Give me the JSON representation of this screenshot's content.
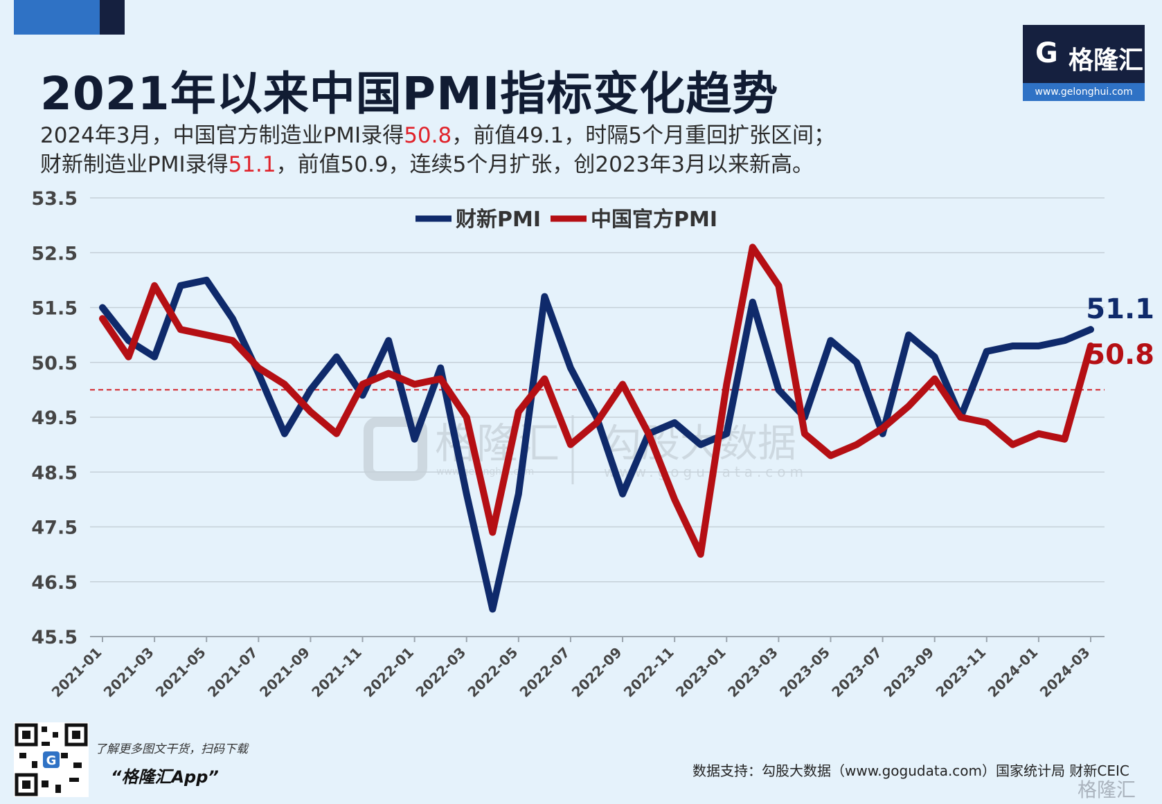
{
  "header": {
    "title": "2021年以来中国PMI指标变化趋势",
    "sub1_pre": "2024年3月，中国官方制造业PMI录得",
    "sub1_hl": "50.8",
    "sub1_post": "，前值49.1，时隔5个月重回扩张区间；",
    "sub2_pre": "财新制造业PMI录得",
    "sub2_hl": "51.1",
    "sub2_post": "，前值50.9，连续5个月扩张，创2023年3月以来新高。"
  },
  "logo": {
    "mark": "G",
    "name": "格隆汇",
    "url": "www.gelonghui.com"
  },
  "watermark": {
    "brand": "格隆汇",
    "brand_url": "www.gelonghui.com",
    "data": "勾股大数据",
    "data_url": "www.gogudata.com"
  },
  "footer": {
    "qr_text1": "了解更多图文干货，扫码下载",
    "qr_text2": "“格隆汇App”",
    "source": "数据支持：勾股大数据（www.gogudata.com）国家统计局 财新CEIC",
    "brand": "格隆汇"
  },
  "colors": {
    "caixin": "#0f2a6b",
    "official": "#b50f14",
    "threshold": "#d4242a",
    "highlight": "#e0222a",
    "background": "#e5f2fb"
  },
  "chart_data": {
    "type": "line",
    "ylim": [
      45.5,
      53.5
    ],
    "yticks": [
      53.5,
      52.5,
      51.5,
      50.5,
      49.5,
      48.5,
      47.5,
      46.5,
      45.5
    ],
    "reference_line": 50,
    "legend_position": "top-center",
    "x": [
      "2021-01",
      "2021-02",
      "2021-03",
      "2021-04",
      "2021-05",
      "2021-06",
      "2021-07",
      "2021-08",
      "2021-09",
      "2021-10",
      "2021-11",
      "2021-12",
      "2022-01",
      "2022-02",
      "2022-03",
      "2022-04",
      "2022-05",
      "2022-06",
      "2022-07",
      "2022-08",
      "2022-09",
      "2022-10",
      "2022-11",
      "2022-12",
      "2023-01",
      "2023-02",
      "2023-03",
      "2023-04",
      "2023-05",
      "2023-06",
      "2023-07",
      "2023-08",
      "2023-09",
      "2023-10",
      "2023-11",
      "2023-12",
      "2024-01",
      "2024-02",
      "2024-03"
    ],
    "xtick_labels": [
      "2021-01",
      "2021-03",
      "2021-05",
      "2021-07",
      "2021-09",
      "2021-11",
      "2022-01",
      "2022-03",
      "2022-05",
      "2022-07",
      "2022-09",
      "2022-11",
      "2023-01",
      "2023-03",
      "2023-05",
      "2023-07",
      "2023-09",
      "2023-11",
      "2024-01",
      "2024-03"
    ],
    "series": [
      {
        "name": "财新PMI",
        "color": "#0f2a6b",
        "end_label": "51.1",
        "values": [
          51.5,
          50.9,
          50.6,
          51.9,
          52.0,
          51.3,
          50.3,
          49.2,
          50.0,
          50.6,
          49.9,
          50.9,
          49.1,
          50.4,
          48.1,
          46.0,
          48.1,
          51.7,
          50.4,
          49.5,
          48.1,
          49.2,
          49.4,
          49.0,
          49.2,
          51.6,
          50.0,
          49.5,
          50.9,
          50.5,
          49.2,
          51.0,
          50.6,
          49.5,
          50.7,
          50.8,
          50.8,
          50.9,
          51.1
        ]
      },
      {
        "name": "中国官方PMI",
        "color": "#b50f14",
        "end_label": "50.8",
        "values": [
          51.3,
          50.6,
          51.9,
          51.1,
          51.0,
          50.9,
          50.4,
          50.1,
          49.6,
          49.2,
          50.1,
          50.3,
          50.1,
          50.2,
          49.5,
          47.4,
          49.6,
          50.2,
          49.0,
          49.4,
          50.1,
          49.2,
          48.0,
          47.0,
          50.1,
          52.6,
          51.9,
          49.2,
          48.8,
          49.0,
          49.3,
          49.7,
          50.2,
          49.5,
          49.4,
          49.0,
          49.2,
          49.1,
          50.8
        ]
      }
    ]
  }
}
